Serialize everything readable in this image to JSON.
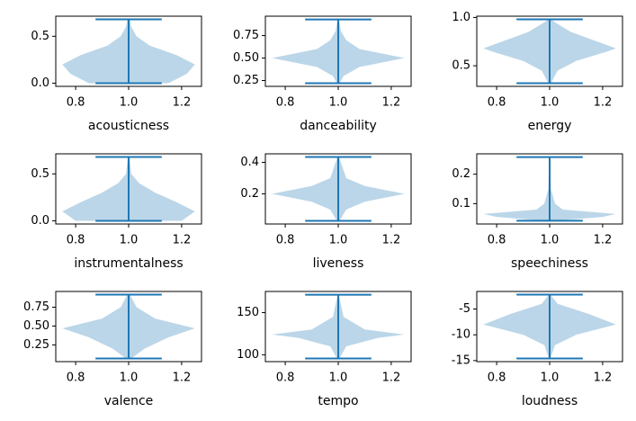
{
  "chart_data": [
    {
      "type": "violin",
      "xlabel": "acousticness",
      "color": "#1f77b4",
      "min": 0.0,
      "max": 0.68,
      "y": [
        0.0,
        0.1,
        0.2,
        0.3,
        0.4,
        0.5,
        0.6,
        0.68
      ],
      "width": [
        0.15,
        0.22,
        0.25,
        0.18,
        0.08,
        0.03,
        0.01,
        0.005
      ],
      "xlim": [
        0.725,
        1.275
      ],
      "xticks": [
        0.8,
        {
          "value": 1,
          "label": "1.0"
        },
        1.2
      ],
      "ylim": [
        -0.034,
        0.714
      ],
      "yticks": [
        {
          "value": 0,
          "label": "0.0"
        },
        0.5
      ]
    },
    {
      "type": "violin",
      "xlabel": "danceability",
      "color": "#1f77b4",
      "min": 0.22,
      "max": 0.93,
      "y": [
        0.22,
        0.3,
        0.4,
        0.5,
        0.6,
        0.7,
        0.8,
        0.93
      ],
      "width": [
        0.005,
        0.02,
        0.08,
        0.25,
        0.08,
        0.03,
        0.01,
        0.003
      ],
      "xlim": [
        0.725,
        1.275
      ],
      "xticks": [
        0.8,
        {
          "value": 1,
          "label": "1.0"
        },
        1.2
      ],
      "ylim": [
        0.185,
        0.966
      ],
      "yticks": [
        0.25,
        {
          "value": 0.5,
          "label": "0.50"
        },
        0.75
      ]
    },
    {
      "type": "violin",
      "xlabel": "energy",
      "color": "#1f77b4",
      "min": 0.32,
      "max": 0.98,
      "y": [
        0.32,
        0.45,
        0.55,
        0.65,
        0.68,
        0.75,
        0.85,
        0.95,
        0.98
      ],
      "width": [
        0.005,
        0.03,
        0.1,
        0.22,
        0.25,
        0.18,
        0.08,
        0.02,
        0.005
      ],
      "xlim": [
        0.725,
        1.275
      ],
      "xticks": [
        0.8,
        {
          "value": 1,
          "label": "1.0"
        },
        1.2
      ],
      "ylim": [
        0.287,
        1.013
      ],
      "yticks": [
        0.5,
        {
          "value": 1,
          "label": "1.0"
        }
      ]
    },
    {
      "type": "violin",
      "xlabel": "instrumentalness",
      "color": "#1f77b4",
      "min": 0.0,
      "max": 0.68,
      "y": [
        0.0,
        0.1,
        0.2,
        0.3,
        0.4,
        0.5,
        0.68
      ],
      "width": [
        0.2,
        0.25,
        0.18,
        0.1,
        0.04,
        0.01,
        0.003
      ],
      "xlim": [
        0.725,
        1.275
      ],
      "xticks": [
        0.8,
        {
          "value": 1,
          "label": "1.0"
        },
        1.2
      ],
      "ylim": [
        -0.034,
        0.714
      ],
      "yticks": [
        {
          "value": 0,
          "label": "0.0"
        },
        0.5
      ]
    },
    {
      "type": "violin",
      "xlabel": "liveness",
      "color": "#1f77b4",
      "min": 0.029,
      "max": 0.434,
      "y": [
        0.029,
        0.1,
        0.15,
        0.2,
        0.25,
        0.3,
        0.434
      ],
      "width": [
        0.005,
        0.03,
        0.1,
        0.25,
        0.1,
        0.03,
        0.003
      ],
      "xlim": [
        0.725,
        1.275
      ],
      "xticks": [
        0.8,
        {
          "value": 1,
          "label": "1.0"
        },
        1.2
      ],
      "ylim": [
        0.009,
        0.454
      ],
      "yticks": [
        0.2,
        0.4
      ]
    },
    {
      "type": "violin",
      "xlabel": "speechiness",
      "color": "#1f77b4",
      "min": 0.042,
      "max": 0.258,
      "y": [
        0.042,
        0.055,
        0.065,
        0.08,
        0.1,
        0.15,
        0.258
      ],
      "width": [
        0.02,
        0.2,
        0.25,
        0.05,
        0.02,
        0.005,
        0.002
      ],
      "xlim": [
        0.725,
        1.275
      ],
      "xticks": [
        0.8,
        {
          "value": 1,
          "label": "1.0"
        },
        1.2
      ],
      "ylim": [
        0.031,
        0.269
      ],
      "yticks": [
        0.1,
        0.2
      ]
    },
    {
      "type": "violin",
      "xlabel": "valence",
      "color": "#1f77b4",
      "min": 0.07,
      "max": 0.917,
      "y": [
        0.07,
        0.2,
        0.35,
        0.47,
        0.6,
        0.75,
        0.917
      ],
      "width": [
        0.01,
        0.06,
        0.15,
        0.25,
        0.1,
        0.03,
        0.005
      ],
      "xlim": [
        0.725,
        1.275
      ],
      "xticks": [
        0.8,
        {
          "value": 1,
          "label": "1.0"
        },
        1.2
      ],
      "ylim": [
        0.028,
        0.959
      ],
      "yticks": [
        0.25,
        {
          "value": 0.5,
          "label": "0.50"
        },
        0.75
      ]
    },
    {
      "type": "violin",
      "xlabel": "tempo",
      "color": "#1f77b4",
      "min": 95.7,
      "max": 171.3,
      "y": [
        95.7,
        110,
        120,
        124,
        130,
        145,
        171.3
      ],
      "width": [
        0.005,
        0.03,
        0.15,
        0.25,
        0.1,
        0.02,
        0.002
      ],
      "xlim": [
        0.725,
        1.275
      ],
      "xticks": [
        0.8,
        {
          "value": 1,
          "label": "1.0"
        },
        1.2
      ],
      "ylim": [
        91.9,
        175.1
      ],
      "yticks": [
        100,
        150
      ]
    },
    {
      "type": "violin",
      "xlabel": "loudness",
      "color": "#1f77b4",
      "min": -14.6,
      "max": -2.2,
      "y": [
        -14.6,
        -12,
        -10,
        -8,
        -6,
        -4,
        -2.2
      ],
      "width": [
        0.003,
        0.02,
        0.1,
        0.25,
        0.15,
        0.03,
        0.003
      ],
      "xlim": [
        0.725,
        1.275
      ],
      "xticks": [
        0.8,
        {
          "value": 1,
          "label": "1.0"
        },
        1.2
      ],
      "ylim": [
        -15.2,
        -1.6
      ],
      "yticks": [
        -15,
        -10,
        -5
      ]
    }
  ]
}
